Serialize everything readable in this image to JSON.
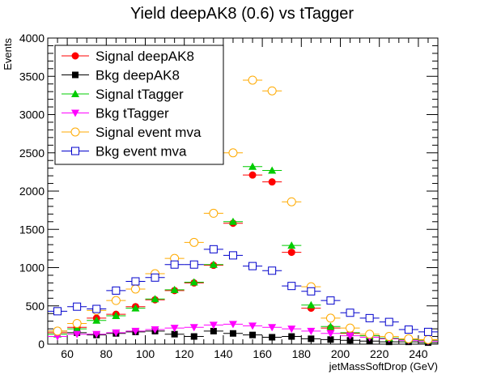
{
  "chart_data": {
    "type": "scatter",
    "title": "Yield deepAK8 (0.6) vs tTagger",
    "xlabel": "jetMassSoftDrop (GeV)",
    "ylabel": "Events",
    "xlim": [
      50,
      250
    ],
    "ylim": [
      0,
      4000
    ],
    "xticks": [
      60,
      80,
      100,
      120,
      140,
      160,
      180,
      200,
      220,
      240
    ],
    "yticks": [
      0,
      500,
      1000,
      1500,
      2000,
      2500,
      3000,
      3500,
      4000
    ],
    "bin_width": 10,
    "legend_position": "top-left",
    "series": [
      {
        "name": "Signal deepAK8",
        "color": "#ff0000",
        "marker": "circle-filled",
        "x": [
          55,
          65,
          75,
          85,
          95,
          105,
          115,
          125,
          135,
          145,
          155,
          165,
          175,
          185,
          195,
          205,
          215,
          225,
          235,
          245
        ],
        "y": [
          150,
          220,
          340,
          390,
          490,
          580,
          700,
          800,
          1030,
          1580,
          2210,
          2120,
          1200,
          470,
          210,
          140,
          110,
          80,
          60,
          50
        ]
      },
      {
        "name": "Bkg deepAK8",
        "color": "#000000",
        "marker": "square-filled",
        "x": [
          55,
          65,
          75,
          85,
          95,
          105,
          115,
          125,
          135,
          145,
          155,
          165,
          175,
          185,
          195,
          205,
          215,
          225,
          235,
          245
        ],
        "y": [
          170,
          150,
          120,
          140,
          160,
          170,
          130,
          100,
          170,
          140,
          120,
          90,
          100,
          70,
          60,
          50,
          40,
          30,
          30,
          20
        ]
      },
      {
        "name": "Signal tTagger",
        "color": "#00cc00",
        "marker": "triangle-up",
        "x": [
          55,
          65,
          75,
          85,
          95,
          105,
          115,
          125,
          135,
          145,
          155,
          165,
          175,
          185,
          195,
          205,
          215,
          225,
          235,
          245
        ],
        "y": [
          130,
          200,
          310,
          370,
          470,
          590,
          710,
          810,
          1040,
          1600,
          2320,
          2270,
          1290,
          510,
          230,
          150,
          110,
          80,
          60,
          50
        ]
      },
      {
        "name": "Bkg tTagger",
        "color": "#ff00ff",
        "marker": "triangle-down",
        "x": [
          55,
          65,
          75,
          85,
          95,
          105,
          115,
          125,
          135,
          145,
          155,
          165,
          175,
          185,
          195,
          205,
          215,
          225,
          235,
          245
        ],
        "y": [
          100,
          130,
          130,
          150,
          170,
          190,
          210,
          220,
          250,
          260,
          240,
          220,
          200,
          170,
          140,
          110,
          90,
          70,
          50,
          40
        ]
      },
      {
        "name": "Signal event mva",
        "color": "#ffaa00",
        "marker": "circle-open",
        "x": [
          55,
          65,
          75,
          85,
          95,
          105,
          115,
          125,
          135,
          145,
          155,
          165,
          175,
          185,
          195,
          205,
          215,
          225,
          235,
          245
        ],
        "y": [
          170,
          270,
          440,
          570,
          720,
          920,
          1120,
          1330,
          1710,
          2500,
          3450,
          3310,
          1860,
          750,
          340,
          210,
          130,
          100,
          70,
          60
        ]
      },
      {
        "name": "Bkg event mva",
        "color": "#0000cc",
        "marker": "square-open",
        "x": [
          55,
          65,
          75,
          85,
          95,
          105,
          115,
          125,
          135,
          145,
          155,
          165,
          175,
          185,
          195,
          205,
          215,
          225,
          235,
          245
        ],
        "y": [
          430,
          490,
          460,
          700,
          820,
          870,
          1040,
          1040,
          1240,
          1160,
          1020,
          960,
          760,
          690,
          570,
          410,
          340,
          290,
          190,
          160
        ]
      }
    ]
  }
}
